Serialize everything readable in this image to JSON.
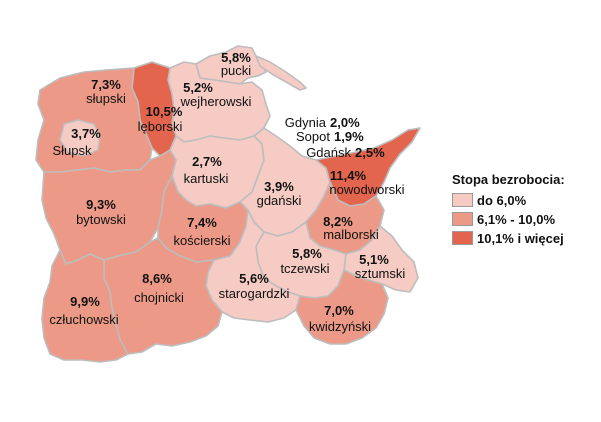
{
  "colors": {
    "low": "#f5cbc4",
    "mid": "#ec9a87",
    "high": "#e4654d",
    "border": "#bdbdbd"
  },
  "legend": {
    "title": "Stopa bezrobocia:",
    "items": [
      {
        "label": "do 6,0%",
        "class": "low"
      },
      {
        "label": "6,1% - 10,0%",
        "class": "mid"
      },
      {
        "label": "10,1% i więcej",
        "class": "high"
      }
    ]
  },
  "counties": [
    {
      "id": "pucki",
      "name": "pucki",
      "value": "5,8%",
      "class": "low"
    },
    {
      "id": "wejherowski",
      "name": "wejherowski",
      "value": "5,2%",
      "class": "low"
    },
    {
      "id": "lęborski",
      "name": "lęborski",
      "value": "10,5%",
      "class": "high"
    },
    {
      "id": "słupski",
      "name": "słupski",
      "value": "7,3%",
      "class": "mid"
    },
    {
      "id": "Słupsk",
      "name": "Słupsk",
      "value": "3,7%",
      "class": "low"
    },
    {
      "id": "bytowski",
      "name": "bytowski",
      "value": "9,3%",
      "class": "mid"
    },
    {
      "id": "kartuski",
      "name": "kartuski",
      "value": "2,7%",
      "class": "low"
    },
    {
      "id": "gdański",
      "name": "gdański",
      "value": "3,9%",
      "class": "low"
    },
    {
      "id": "nowodworski",
      "name": "nowodworski",
      "value": "11,4%",
      "class": "high"
    },
    {
      "id": "kościerski",
      "name": "kościerski",
      "value": "7,4%",
      "class": "mid"
    },
    {
      "id": "malborski",
      "name": "malborski",
      "value": "8,2%",
      "class": "mid"
    },
    {
      "id": "tczewski",
      "name": "tczewski",
      "value": "5,8%",
      "class": "low"
    },
    {
      "id": "sztumski",
      "name": "sztumski",
      "value": "5,1%",
      "class": "low"
    },
    {
      "id": "chojnicki",
      "name": "chojnicki",
      "value": "8,6%",
      "class": "mid"
    },
    {
      "id": "starogardzki",
      "name": "starogardzki",
      "value": "5,6%",
      "class": "low"
    },
    {
      "id": "człuchowski",
      "name": "człuchowski",
      "value": "9,9%",
      "class": "mid"
    },
    {
      "id": "kwidzyński",
      "name": "kwidzyński",
      "value": "7,0%",
      "class": "mid"
    }
  ],
  "cities": [
    {
      "id": "Gdynia",
      "name": "Gdynia",
      "value": "2,0%"
    },
    {
      "id": "Sopot",
      "name": "Sopot",
      "value": "1,9%"
    },
    {
      "id": "Gdańsk",
      "name": "Gdańsk",
      "value": "2,5%"
    }
  ]
}
